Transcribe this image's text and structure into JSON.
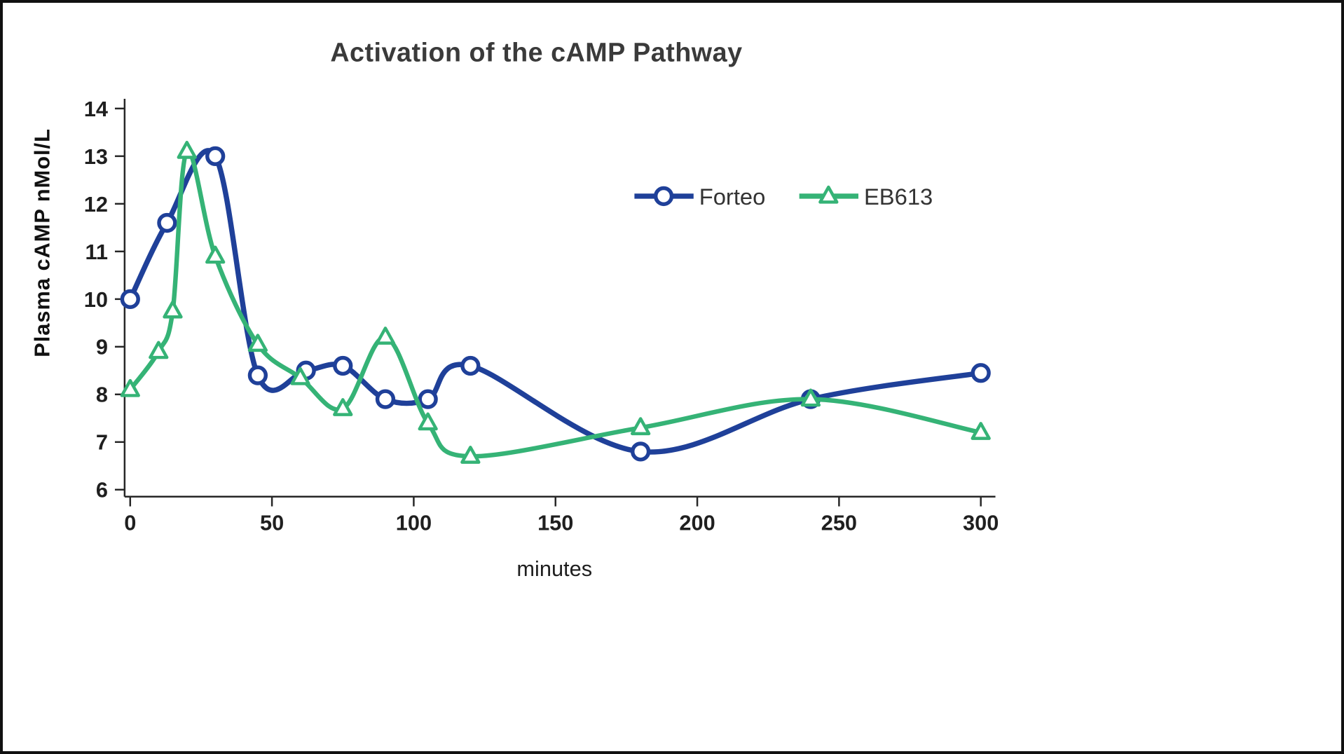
{
  "chart_data": {
    "type": "line",
    "title": "Activation of the cAMP Pathway",
    "xlabel": "minutes",
    "ylabel": "Plasma cAMP  nMol/L",
    "xlim": [
      0,
      300
    ],
    "ylim": [
      6,
      14
    ],
    "x_ticks": [
      0,
      50,
      100,
      150,
      200,
      250,
      300
    ],
    "y_ticks": [
      6,
      7,
      8,
      9,
      10,
      11,
      12,
      13,
      14
    ],
    "grid": false,
    "legend_position": "inside-upper-right",
    "line_style": "smooth",
    "series": [
      {
        "name": "Forteo",
        "color": "#1F4099",
        "marker": "circle",
        "x": [
          0,
          13,
          30,
          45,
          62,
          75,
          90,
          105,
          120,
          180,
          240,
          300
        ],
        "y": [
          10,
          11.6,
          13,
          8.4,
          8.5,
          8.6,
          7.9,
          7.9,
          8.6,
          6.8,
          7.9,
          8.45
        ]
      },
      {
        "name": "EB613",
        "color": "#35B376",
        "marker": "triangle",
        "x": [
          0,
          10,
          15,
          20,
          30,
          45,
          60,
          75,
          90,
          105,
          120,
          180,
          240,
          300
        ],
        "y": [
          8.1,
          8.9,
          9.75,
          13.1,
          10.9,
          9.05,
          8.35,
          7.7,
          9.2,
          7.4,
          6.7,
          7.3,
          7.9,
          7.2
        ]
      }
    ]
  }
}
